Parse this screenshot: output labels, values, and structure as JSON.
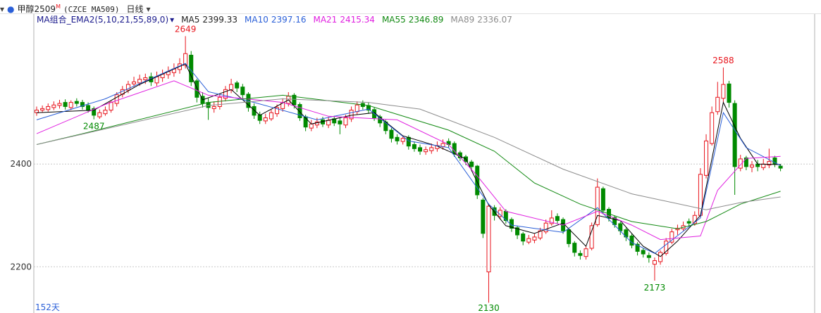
{
  "chart_data": {
    "type": "candlestick",
    "instrument": "甲醇2509",
    "instrument_sup": "M",
    "exchange_code": "(CZCE MA509)",
    "period": "日线",
    "indicator": "MA组合_EMA2(5,10,21,55,89,0)",
    "days_label": "152天",
    "ylim": [
      2110,
      2692
    ],
    "yticks": [
      2400,
      2200
    ],
    "grid": true,
    "up_color": "#e8141c",
    "down_color": "#008a00",
    "open": [
      2500,
      2505,
      2506,
      2510,
      2514,
      2520,
      2510,
      2522,
      2520,
      2514,
      2508,
      2492,
      2498,
      2505,
      2518,
      2536,
      2544,
      2556,
      2558,
      2564,
      2570,
      2558,
      2568,
      2574,
      2578,
      2584,
      2592,
      2612,
      2562,
      2532,
      2520,
      2508,
      2512,
      2528,
      2544,
      2558,
      2550,
      2536,
      2512,
      2496,
      2484,
      2488,
      2498,
      2508,
      2518,
      2534,
      2516,
      2492,
      2470,
      2476,
      2486,
      2476,
      2488,
      2484,
      2476,
      2488,
      2502,
      2518,
      2514,
      2506,
      2492,
      2482,
      2466,
      2452,
      2444,
      2452,
      2438,
      2432,
      2424,
      2426,
      2430,
      2434,
      2444,
      2440,
      2422,
      2414,
      2404,
      2396,
      2330,
      2190,
      2315,
      2298,
      2308,
      2292,
      2276,
      2264,
      2248,
      2252,
      2256,
      2268,
      2284,
      2298,
      2292,
      2272,
      2246,
      2226,
      2220,
      2236,
      2282,
      2352,
      2312,
      2296,
      2284,
      2272,
      2260,
      2244,
      2232,
      2222,
      2205,
      2210,
      2226,
      2248,
      2272,
      2274,
      2288,
      2284,
      2300,
      2378,
      2440,
      2502,
      2528,
      2556,
      2518,
      2392,
      2412,
      2394,
      2400,
      2393,
      2398,
      2412,
      2396
    ],
    "high": [
      2512,
      2514,
      2518,
      2522,
      2525,
      2526,
      2524,
      2528,
      2525,
      2520,
      2512,
      2506,
      2512,
      2524,
      2540,
      2552,
      2562,
      2570,
      2574,
      2576,
      2578,
      2580,
      2584,
      2590,
      2596,
      2606,
      2649,
      2620,
      2566,
      2540,
      2528,
      2522,
      2536,
      2552,
      2566,
      2562,
      2556,
      2540,
      2518,
      2502,
      2498,
      2506,
      2516,
      2528,
      2540,
      2538,
      2520,
      2496,
      2486,
      2490,
      2492,
      2492,
      2494,
      2490,
      2496,
      2512,
      2522,
      2524,
      2520,
      2510,
      2496,
      2486,
      2470,
      2458,
      2456,
      2456,
      2444,
      2438,
      2434,
      2440,
      2444,
      2448,
      2450,
      2444,
      2426,
      2418,
      2408,
      2398,
      2334,
      2322,
      2320,
      2316,
      2312,
      2296,
      2280,
      2268,
      2262,
      2264,
      2276,
      2292,
      2310,
      2304,
      2296,
      2276,
      2250,
      2232,
      2240,
      2286,
      2372,
      2356,
      2316,
      2300,
      2288,
      2276,
      2264,
      2248,
      2236,
      2228,
      2218,
      2232,
      2256,
      2274,
      2282,
      2288,
      2294,
      2308,
      2392,
      2458,
      2512,
      2560,
      2588,
      2562,
      2524,
      2418,
      2416,
      2406,
      2408,
      2410,
      2430,
      2416,
      2400
    ],
    "low": [
      2494,
      2500,
      2502,
      2505,
      2508,
      2506,
      2505,
      2512,
      2506,
      2500,
      2487,
      2488,
      2494,
      2500,
      2512,
      2530,
      2538,
      2550,
      2552,
      2556,
      2552,
      2552,
      2560,
      2566,
      2570,
      2576,
      2586,
      2552,
      2520,
      2510,
      2486,
      2500,
      2506,
      2522,
      2538,
      2540,
      2528,
      2502,
      2488,
      2478,
      2478,
      2484,
      2492,
      2502,
      2512,
      2508,
      2484,
      2464,
      2464,
      2470,
      2472,
      2470,
      2474,
      2458,
      2470,
      2482,
      2496,
      2506,
      2498,
      2484,
      2472,
      2458,
      2442,
      2438,
      2438,
      2428,
      2424,
      2418,
      2418,
      2420,
      2424,
      2428,
      2432,
      2414,
      2406,
      2398,
      2388,
      2332,
      2256,
      2130,
      2290,
      2292,
      2284,
      2268,
      2254,
      2242,
      2244,
      2246,
      2252,
      2264,
      2280,
      2284,
      2264,
      2238,
      2220,
      2214,
      2214,
      2232,
      2278,
      2302,
      2288,
      2276,
      2262,
      2250,
      2236,
      2222,
      2218,
      2208,
      2173,
      2204,
      2222,
      2244,
      2262,
      2270,
      2278,
      2280,
      2296,
      2372,
      2436,
      2496,
      2520,
      2510,
      2340,
      2386,
      2388,
      2384,
      2386,
      2388,
      2392,
      2394,
      2386
    ],
    "close": [
      2505,
      2508,
      2512,
      2515,
      2518,
      2512,
      2520,
      2518,
      2512,
      2505,
      2495,
      2500,
      2505,
      2520,
      2535,
      2545,
      2555,
      2560,
      2565,
      2568,
      2560,
      2570,
      2575,
      2580,
      2585,
      2595,
      2615,
      2560,
      2530,
      2518,
      2510,
      2512,
      2530,
      2545,
      2555,
      2548,
      2535,
      2510,
      2495,
      2485,
      2490,
      2500,
      2510,
      2520,
      2532,
      2515,
      2490,
      2472,
      2478,
      2482,
      2478,
      2485,
      2480,
      2478,
      2490,
      2505,
      2515,
      2512,
      2505,
      2490,
      2480,
      2465,
      2450,
      2445,
      2450,
      2435,
      2430,
      2425,
      2428,
      2432,
      2436,
      2440,
      2438,
      2420,
      2412,
      2405,
      2395,
      2340,
      2265,
      2318,
      2300,
      2310,
      2290,
      2275,
      2262,
      2250,
      2255,
      2258,
      2270,
      2285,
      2295,
      2290,
      2270,
      2245,
      2228,
      2222,
      2235,
      2280,
      2355,
      2310,
      2295,
      2282,
      2270,
      2258,
      2242,
      2230,
      2225,
      2218,
      2212,
      2228,
      2250,
      2268,
      2275,
      2280,
      2285,
      2300,
      2380,
      2445,
      2500,
      2530,
      2555,
      2520,
      2395,
      2410,
      2395,
      2398,
      2395,
      2400,
      2405,
      2400,
      2392
    ],
    "high_labels": [
      26,
      120
    ],
    "low_labels": [
      10,
      79,
      108
    ],
    "series": [
      {
        "name": "MA5",
        "color": "#000000",
        "legend_value": 2399.33,
        "x": [
          0,
          10,
          18,
          26,
          29,
          34,
          39,
          44,
          48,
          55,
          59,
          64,
          70,
          75,
          79,
          82,
          87,
          92,
          96,
          98,
          102,
          106,
          109,
          112,
          116,
          120,
          123,
          126,
          130
        ],
        "values": [
          2500,
          2505,
          2555,
          2595,
          2525,
          2545,
          2495,
          2525,
          2478,
          2495,
          2500,
          2455,
          2435,
          2410,
          2320,
          2280,
          2265,
          2285,
          2240,
          2300,
          2290,
          2240,
          2220,
          2250,
          2300,
          2520,
          2450,
          2400,
          2399
        ]
      },
      {
        "name": "MA10",
        "color": "#2a5fd8",
        "legend_value": 2397.16,
        "x": [
          0,
          12,
          26,
          30,
          38,
          49,
          58,
          65,
          72,
          79,
          83,
          92,
          98,
          104,
          108,
          116,
          120,
          124,
          130
        ],
        "values": [
          2486,
          2527,
          2596,
          2541,
          2520,
          2486,
          2507,
          2445,
          2432,
          2322,
          2281,
          2267,
          2315,
          2247,
          2226,
          2295,
          2500,
          2432,
          2397
        ]
      },
      {
        "name": "MA21",
        "color": "#e020e0",
        "legend_value": 2415.34,
        "x": [
          0,
          12,
          24,
          30,
          43,
          51,
          63,
          72,
          77,
          82,
          92,
          98,
          104,
          109,
          116,
          119,
          124,
          130
        ],
        "values": [
          2459,
          2516,
          2562,
          2534,
          2520,
          2493,
          2486,
          2438,
          2377,
          2308,
          2281,
          2308,
          2281,
          2253,
          2260,
          2349,
          2411,
          2415
        ]
      },
      {
        "name": "MA55",
        "color": "#138a13",
        "legend_value": 2346.89,
        "x": [
          0,
          8,
          30,
          43,
          58,
          72,
          80,
          87,
          95,
          104,
          112,
          117,
          123,
          130
        ],
        "values": [
          2438,
          2459,
          2520,
          2534,
          2514,
          2466,
          2425,
          2363,
          2322,
          2288,
          2274,
          2288,
          2322,
          2347
        ]
      },
      {
        "name": "MA89",
        "color": "#8c8c8c",
        "legend_value": 2336.07,
        "x": [
          0,
          30,
          43,
          58,
          67,
          80,
          92,
          104,
          117,
          123,
          130
        ],
        "values": [
          2438,
          2514,
          2527,
          2520,
          2507,
          2452,
          2390,
          2342,
          2311,
          2325,
          2336
        ]
      }
    ]
  }
}
